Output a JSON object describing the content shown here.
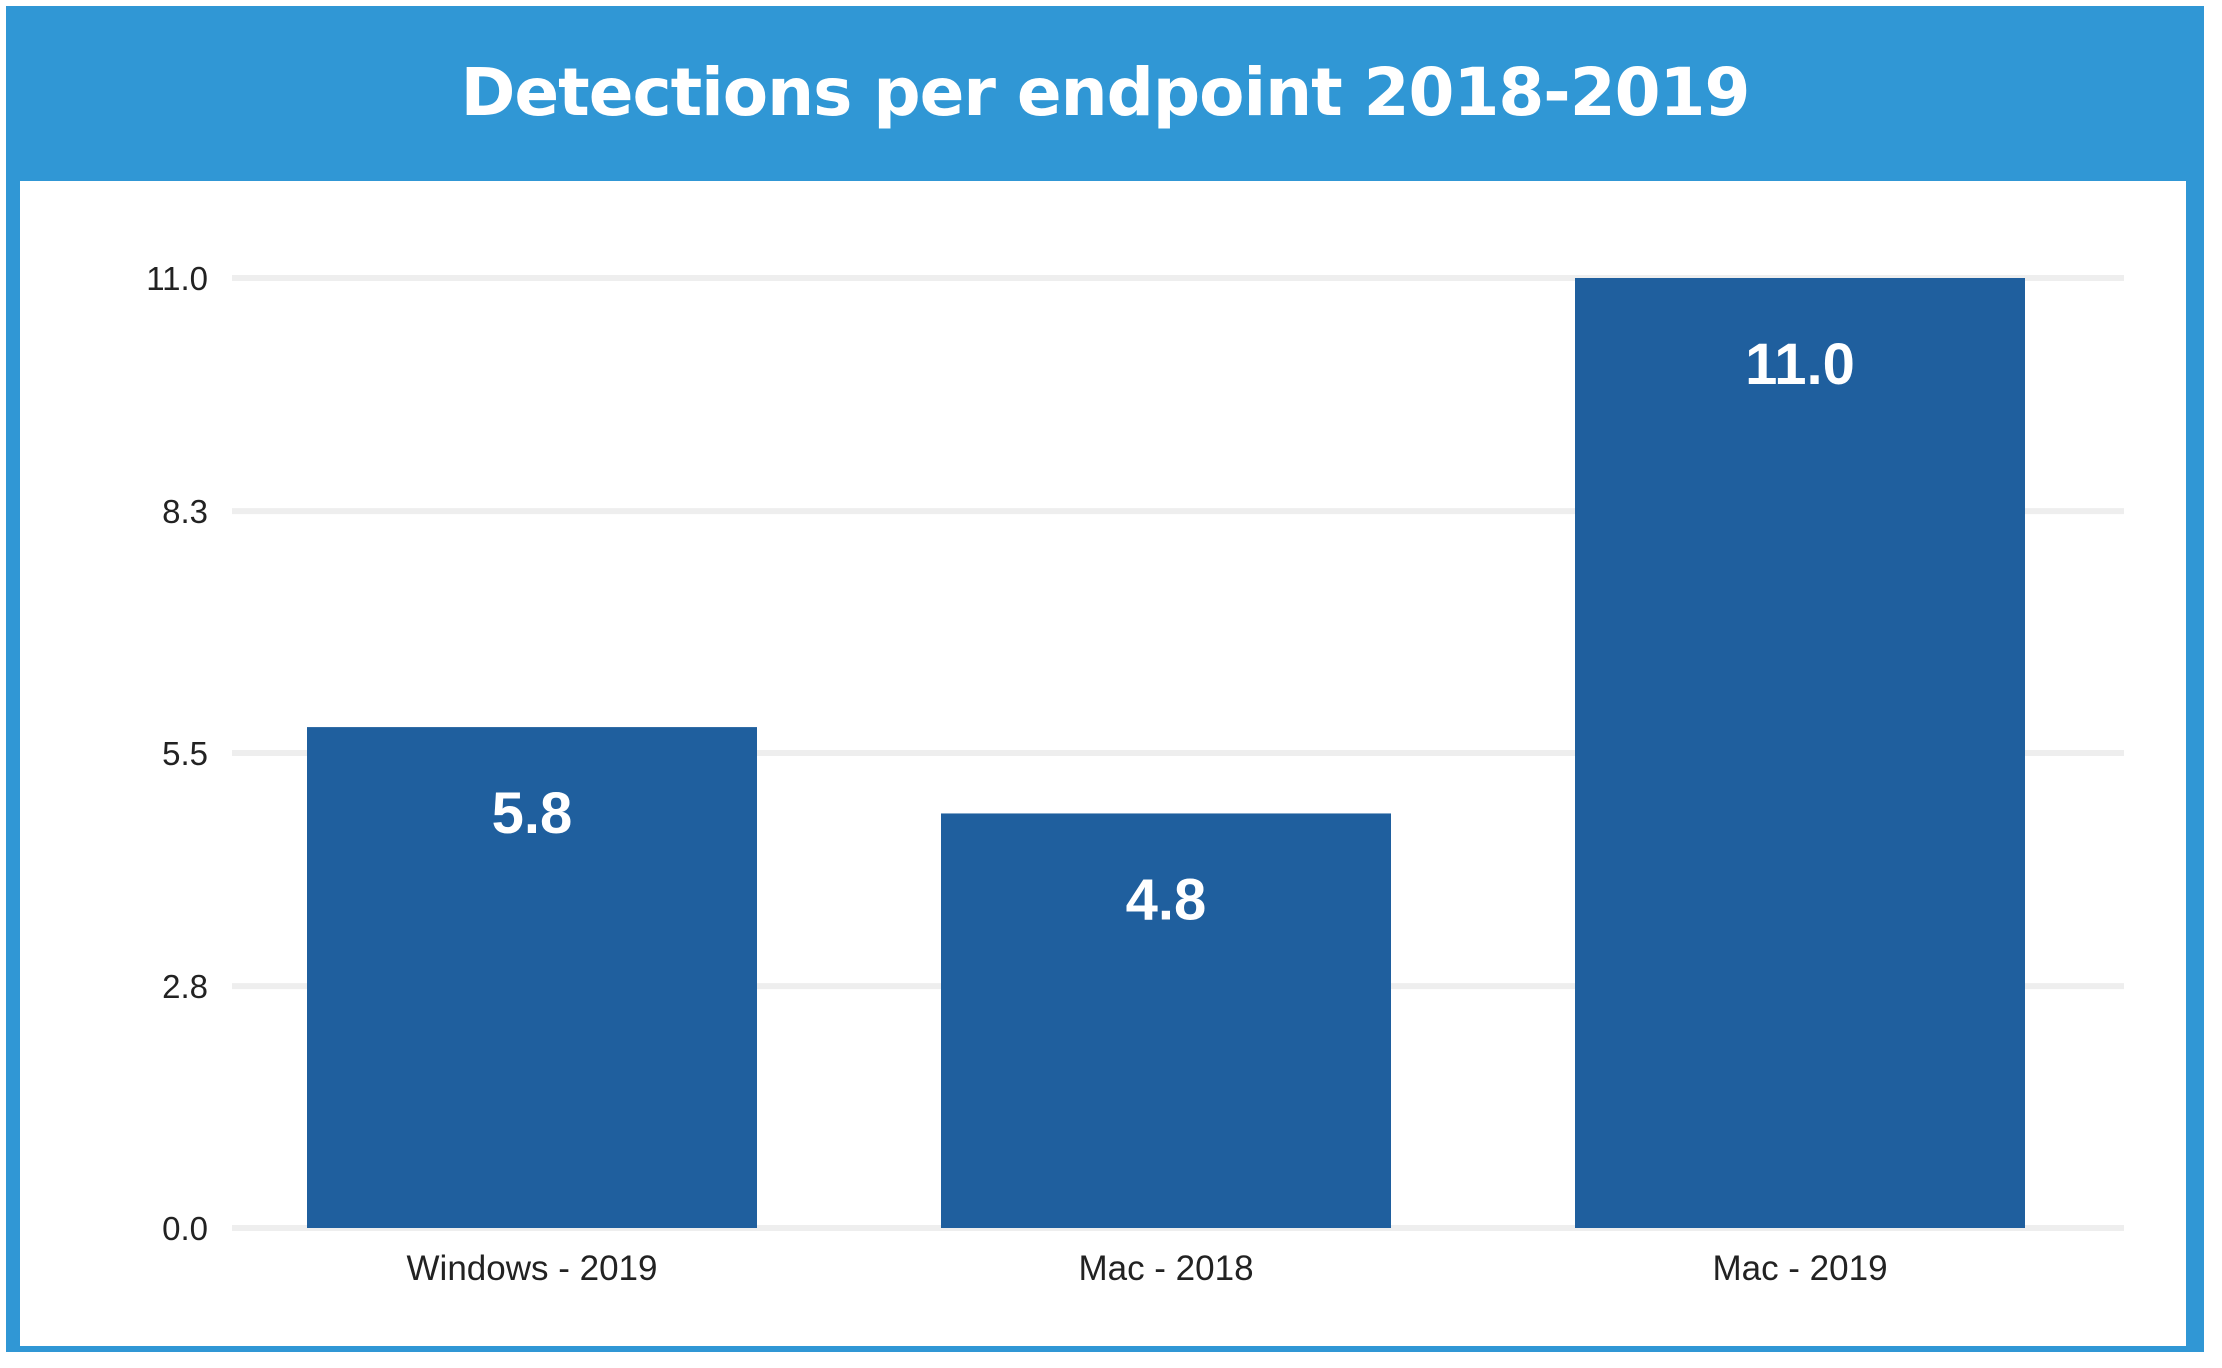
{
  "chart_data": {
    "type": "bar",
    "title": "Detections per endpoint 2018-2019",
    "categories": [
      "Windows - 2019",
      "Mac - 2018",
      "Mac - 2019"
    ],
    "values": [
      5.8,
      4.8,
      11.0
    ],
    "data_labels": [
      "5.8",
      "4.8",
      "11.0"
    ],
    "yticks": [
      0.0,
      2.8,
      5.5,
      8.3,
      11.0
    ],
    "ytick_labels": [
      "0.0",
      "2.8",
      "5.5",
      "8.3",
      "11.0"
    ],
    "ylim": [
      0,
      11.0
    ],
    "xlabel": "",
    "ylabel": "",
    "grid": true,
    "legend": "none",
    "bar_color": "#1f5f9e",
    "frame_color": "#3097d5",
    "grid_color": "#eeeeee"
  }
}
